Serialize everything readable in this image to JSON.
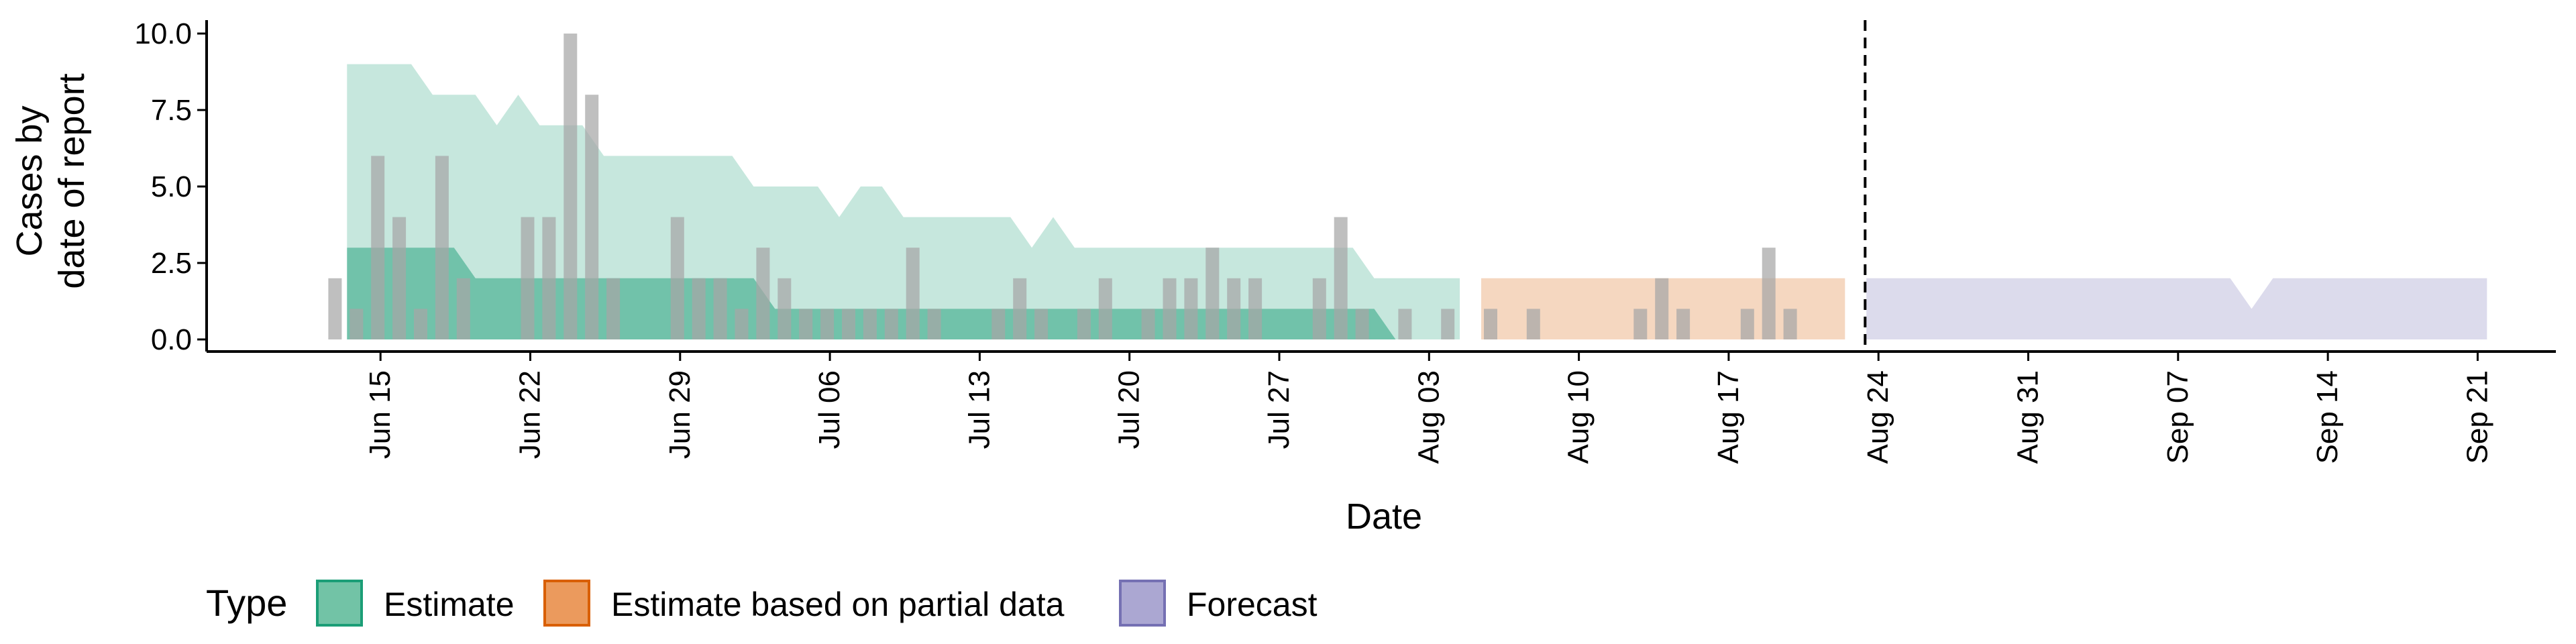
{
  "chart_data": {
    "type": "area",
    "xlabel": "Date",
    "ylabel": [
      "Cases by",
      "date of report"
    ],
    "ylim": [
      0,
      10.5
    ],
    "yticks": [
      0,
      2.5,
      5,
      7.5,
      10
    ],
    "ytick_labels": [
      "0.0",
      "2.5",
      "5.0",
      "7.5",
      "10.0"
    ],
    "xlim": [
      "2020-06-07",
      "2020-10-01"
    ],
    "xticks": [
      "2020-06-15",
      "2020-06-22",
      "2020-06-29",
      "2020-07-06",
      "2020-07-13",
      "2020-07-20",
      "2020-07-27",
      "2020-08-03",
      "2020-08-10",
      "2020-08-17",
      "2020-08-24",
      "2020-08-31",
      "2020-09-07",
      "2020-09-14",
      "2020-09-21"
    ],
    "xtick_labels": [
      "Jun 15",
      "Jun 22",
      "Jun 29",
      "Jul 06",
      "Jul 13",
      "Jul 20",
      "Jul 27",
      "Aug 03",
      "Aug 10",
      "Aug 17",
      "Aug 24",
      "Aug 31",
      "Sep 07",
      "Sep 14",
      "Sep 21"
    ],
    "vline_date": "2020-08-23",
    "grid": false,
    "legend": {
      "title": "Type",
      "position": "bottom-left",
      "items": [
        {
          "label": "Estimate",
          "fill": "#72c3a6",
          "stroke": "#1b9e77"
        },
        {
          "label": "Estimate based on partial data",
          "fill": "#eb9a5d",
          "stroke": "#d95f02"
        },
        {
          "label": "Forecast",
          "fill": "#aba7d2",
          "stroke": "#7570b3"
        }
      ]
    },
    "reported_cases": {
      "color": "#a6a6a6",
      "dates": [
        "2020-06-13",
        "2020-06-14",
        "2020-06-15",
        "2020-06-16",
        "2020-06-17",
        "2020-06-18",
        "2020-06-19",
        "2020-06-20",
        "2020-06-21",
        "2020-06-22",
        "2020-06-23",
        "2020-06-24",
        "2020-06-25",
        "2020-06-26",
        "2020-06-27",
        "2020-06-28",
        "2020-06-29",
        "2020-06-30",
        "2020-07-01",
        "2020-07-02",
        "2020-07-03",
        "2020-07-04",
        "2020-07-05",
        "2020-07-06",
        "2020-07-07",
        "2020-07-08",
        "2020-07-09",
        "2020-07-10",
        "2020-07-11",
        "2020-07-12",
        "2020-07-13",
        "2020-07-14",
        "2020-07-15",
        "2020-07-16",
        "2020-07-17",
        "2020-07-18",
        "2020-07-19",
        "2020-07-20",
        "2020-07-21",
        "2020-07-22",
        "2020-07-23",
        "2020-07-24",
        "2020-07-25",
        "2020-07-26",
        "2020-07-27",
        "2020-07-28",
        "2020-07-29",
        "2020-07-30",
        "2020-07-31",
        "2020-08-01",
        "2020-08-02",
        "2020-08-03",
        "2020-08-04",
        "2020-08-05",
        "2020-08-06",
        "2020-08-07",
        "2020-08-08",
        "2020-08-09",
        "2020-08-10",
        "2020-08-11",
        "2020-08-12",
        "2020-08-13",
        "2020-08-14",
        "2020-08-15",
        "2020-08-16",
        "2020-08-17",
        "2020-08-18",
        "2020-08-19",
        "2020-08-20",
        "2020-08-21"
      ],
      "values": [
        2,
        1,
        6,
        4,
        1,
        6,
        2,
        0,
        0,
        4,
        4,
        10,
        8,
        2,
        0,
        0,
        4,
        2,
        2,
        1,
        3,
        2,
        1,
        1,
        1,
        1,
        1,
        3,
        1,
        0,
        0,
        1,
        2,
        1,
        0,
        1,
        2,
        0,
        1,
        2,
        2,
        3,
        2,
        2,
        0,
        0,
        2,
        4,
        1,
        0,
        1,
        0,
        1,
        0,
        1,
        0,
        1,
        0,
        0,
        0,
        0,
        1,
        2,
        1,
        0,
        0,
        1,
        3,
        1,
        0
      ]
    },
    "series": [
      {
        "name": "Estimate",
        "fill": "#1b9e77",
        "bands": [
          {
            "opacity": 0.25,
            "points": [
              [
                "2020-06-14",
                0,
                9
              ],
              [
                "2020-06-17",
                0,
                9
              ],
              [
                "2020-06-18",
                0,
                8
              ],
              [
                "2020-06-20",
                0,
                8
              ],
              [
                "2020-06-21",
                0,
                7
              ],
              [
                "2020-06-22",
                0,
                8
              ],
              [
                "2020-06-23",
                0,
                7
              ],
              [
                "2020-06-25",
                0,
                7
              ],
              [
                "2020-06-26",
                0,
                6
              ],
              [
                "2020-07-02",
                0,
                6
              ],
              [
                "2020-07-03",
                0,
                5
              ],
              [
                "2020-07-06",
                0,
                5
              ],
              [
                "2020-07-07",
                0,
                4
              ],
              [
                "2020-07-08",
                0,
                5
              ],
              [
                "2020-07-09",
                0,
                5
              ],
              [
                "2020-07-10",
                0,
                4
              ],
              [
                "2020-07-15",
                0,
                4
              ],
              [
                "2020-07-16",
                0,
                3
              ],
              [
                "2020-07-17",
                0,
                4
              ],
              [
                "2020-07-18",
                0,
                3
              ],
              [
                "2020-07-31",
                0,
                3
              ],
              [
                "2020-08-01",
                0,
                2
              ],
              [
                "2020-08-05",
                0,
                2
              ]
            ]
          },
          {
            "opacity": 0.5,
            "points": [
              [
                "2020-06-14",
                0,
                3
              ],
              [
                "2020-06-19",
                0,
                3
              ],
              [
                "2020-06-20",
                0,
                2
              ],
              [
                "2020-07-03",
                0,
                2
              ],
              [
                "2020-07-04",
                0,
                1
              ],
              [
                "2020-08-01",
                0,
                1
              ],
              [
                "2020-08-02",
                0,
                0
              ]
            ]
          }
        ]
      },
      {
        "name": "Estimate based on partial data",
        "fill": "#d95f02",
        "bands": [
          {
            "opacity": 0.25,
            "points": [
              [
                "2020-08-06",
                0,
                2
              ],
              [
                "2020-08-23",
                0,
                2
              ]
            ]
          }
        ]
      },
      {
        "name": "Forecast",
        "fill": "#7570b3",
        "bands": [
          {
            "opacity": 0.25,
            "points": [
              [
                "2020-08-24",
                0,
                2
              ],
              [
                "2020-09-10",
                0,
                2
              ],
              [
                "2020-09-11",
                0,
                1
              ],
              [
                "2020-09-12",
                0,
                2
              ],
              [
                "2020-09-22",
                0,
                2
              ]
            ]
          }
        ]
      }
    ]
  }
}
